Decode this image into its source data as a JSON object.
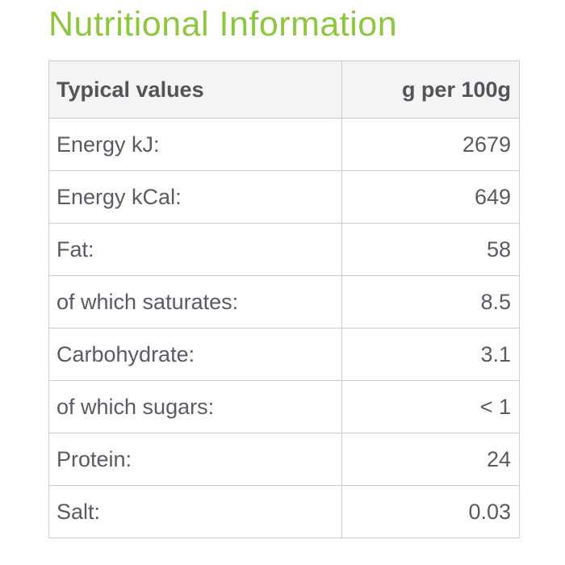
{
  "page": {
    "title": "Nutritional Information",
    "accent_color": "#8dc63f"
  },
  "table": {
    "header": {
      "col1": "Typical values",
      "col2": "g per 100g"
    },
    "rows": [
      {
        "label": "Energy kJ:",
        "value": "2679"
      },
      {
        "label": "Energy kCal:",
        "value": "649"
      },
      {
        "label": "Fat:",
        "value": "58"
      },
      {
        "label": "of which saturates:",
        "value": "8.5"
      },
      {
        "label": "Carbohydrate:",
        "value": "3.1"
      },
      {
        "label": "of which sugars:",
        "value": "< 1"
      },
      {
        "label": "Protein:",
        "value": "24"
      },
      {
        "label": "Salt:",
        "value": "0.03"
      }
    ]
  }
}
